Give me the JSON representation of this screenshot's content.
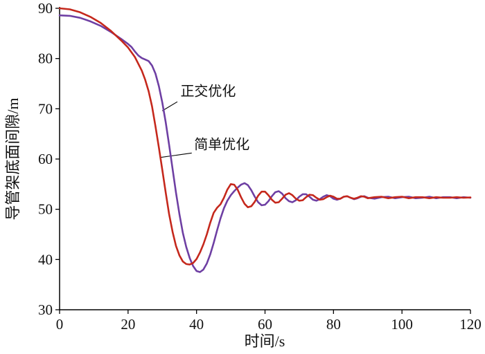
{
  "figure": {
    "background": "#ffffff",
    "axis_color": "#000000",
    "text_color": "#111111"
  },
  "chart_data": {
    "type": "line",
    "title": "",
    "xlabel": "时间/s",
    "ylabel": "导管架底面间隙/m",
    "xlim": [
      0,
      120
    ],
    "ylim": [
      30,
      90
    ],
    "x_ticks": [
      0,
      20,
      40,
      60,
      80,
      100,
      120
    ],
    "y_ticks": [
      30,
      40,
      50,
      60,
      70,
      80,
      90
    ],
    "grid": false,
    "legend_position": "inline-annotations",
    "series": [
      {
        "name": "正交优化",
        "key": "orthogonal-optimization",
        "color": "#6e3fa3",
        "points": [
          [
            0,
            88.6
          ],
          [
            3,
            88.5
          ],
          [
            6,
            88.1
          ],
          [
            9,
            87.4
          ],
          [
            12,
            86.5
          ],
          [
            15,
            85.3
          ],
          [
            18,
            83.9
          ],
          [
            20,
            82.9
          ],
          [
            21,
            82.3
          ],
          [
            22,
            81.4
          ],
          [
            23,
            80.6
          ],
          [
            24,
            80.1
          ],
          [
            25,
            79.8
          ],
          [
            26,
            79.5
          ],
          [
            27,
            78.6
          ],
          [
            28,
            77.0
          ],
          [
            29,
            74.5
          ],
          [
            30,
            71.2
          ],
          [
            31,
            67.3
          ],
          [
            32,
            62.8
          ],
          [
            33,
            58.0
          ],
          [
            34,
            53.3
          ],
          [
            35,
            49.0
          ],
          [
            36,
            45.3
          ],
          [
            37,
            42.5
          ],
          [
            38,
            40.3
          ],
          [
            39,
            38.7
          ],
          [
            40,
            37.7
          ],
          [
            41,
            37.5
          ],
          [
            42,
            38.0
          ],
          [
            43,
            39.2
          ],
          [
            44,
            41.0
          ],
          [
            45,
            43.3
          ],
          [
            46,
            45.8
          ],
          [
            47,
            48.2
          ],
          [
            48,
            50.2
          ],
          [
            49,
            51.7
          ],
          [
            50,
            52.8
          ],
          [
            51,
            53.6
          ],
          [
            52,
            54.3
          ],
          [
            53,
            54.9
          ],
          [
            54,
            55.2
          ],
          [
            55,
            54.8
          ],
          [
            56,
            53.8
          ],
          [
            57,
            52.5
          ],
          [
            58,
            51.4
          ],
          [
            59,
            50.8
          ],
          [
            60,
            50.9
          ],
          [
            61,
            51.6
          ],
          [
            62,
            52.6
          ],
          [
            63,
            53.4
          ],
          [
            64,
            53.6
          ],
          [
            65,
            53.1
          ],
          [
            66,
            52.2
          ],
          [
            67,
            51.6
          ],
          [
            68,
            51.4
          ],
          [
            69,
            51.8
          ],
          [
            70,
            52.5
          ],
          [
            71,
            53.0
          ],
          [
            72,
            53.0
          ],
          [
            73,
            52.5
          ],
          [
            74,
            51.9
          ],
          [
            75,
            51.7
          ],
          [
            76,
            52.0
          ],
          [
            77,
            52.5
          ],
          [
            78,
            52.8
          ],
          [
            79,
            52.6
          ],
          [
            80,
            52.1
          ],
          [
            81,
            51.9
          ],
          [
            82,
            52.1
          ],
          [
            83,
            52.5
          ],
          [
            84,
            52.6
          ],
          [
            85,
            52.3
          ],
          [
            86,
            52.0
          ],
          [
            87,
            52.2
          ],
          [
            88,
            52.5
          ],
          [
            89,
            52.6
          ],
          [
            90,
            52.3
          ],
          [
            92,
            52.1
          ],
          [
            94,
            52.4
          ],
          [
            96,
            52.5
          ],
          [
            98,
            52.2
          ],
          [
            100,
            52.4
          ],
          [
            102,
            52.5
          ],
          [
            104,
            52.2
          ],
          [
            106,
            52.3
          ],
          [
            108,
            52.5
          ],
          [
            110,
            52.2
          ],
          [
            112,
            52.4
          ],
          [
            114,
            52.4
          ],
          [
            116,
            52.2
          ],
          [
            118,
            52.4
          ],
          [
            120,
            52.3
          ]
        ]
      },
      {
        "name": "简单优化",
        "key": "simple-optimization",
        "color": "#c5281c",
        "points": [
          [
            0,
            90.0
          ],
          [
            3,
            89.8
          ],
          [
            6,
            89.2
          ],
          [
            9,
            88.3
          ],
          [
            12,
            87.1
          ],
          [
            15,
            85.5
          ],
          [
            18,
            83.6
          ],
          [
            20,
            82.2
          ],
          [
            22,
            80.3
          ],
          [
            24,
            77.6
          ],
          [
            25,
            75.8
          ],
          [
            26,
            73.5
          ],
          [
            27,
            70.5
          ],
          [
            28,
            66.5
          ],
          [
            29,
            62.3
          ],
          [
            30,
            57.8
          ],
          [
            31,
            53.3
          ],
          [
            32,
            49.0
          ],
          [
            33,
            45.5
          ],
          [
            34,
            42.7
          ],
          [
            35,
            40.8
          ],
          [
            36,
            39.6
          ],
          [
            37,
            39.1
          ],
          [
            38,
            39.0
          ],
          [
            39,
            39.3
          ],
          [
            40,
            40.1
          ],
          [
            41,
            41.4
          ],
          [
            42,
            43.0
          ],
          [
            43,
            45.0
          ],
          [
            44,
            47.3
          ],
          [
            45,
            49.3
          ],
          [
            46,
            50.3
          ],
          [
            47,
            51.0
          ],
          [
            48,
            52.3
          ],
          [
            49,
            53.9
          ],
          [
            50,
            55.0
          ],
          [
            51,
            54.9
          ],
          [
            52,
            53.9
          ],
          [
            53,
            52.4
          ],
          [
            54,
            51.1
          ],
          [
            55,
            50.4
          ],
          [
            56,
            50.6
          ],
          [
            57,
            51.5
          ],
          [
            58,
            52.7
          ],
          [
            59,
            53.5
          ],
          [
            60,
            53.5
          ],
          [
            61,
            52.8
          ],
          [
            62,
            51.9
          ],
          [
            63,
            51.3
          ],
          [
            64,
            51.4
          ],
          [
            65,
            52.1
          ],
          [
            66,
            52.9
          ],
          [
            67,
            53.2
          ],
          [
            68,
            52.8
          ],
          [
            69,
            52.1
          ],
          [
            70,
            51.7
          ],
          [
            71,
            51.8
          ],
          [
            72,
            52.4
          ],
          [
            73,
            52.9
          ],
          [
            74,
            52.8
          ],
          [
            75,
            52.3
          ],
          [
            76,
            51.9
          ],
          [
            77,
            52.0
          ],
          [
            78,
            52.4
          ],
          [
            79,
            52.7
          ],
          [
            80,
            52.5
          ],
          [
            81,
            52.1
          ],
          [
            82,
            52.1
          ],
          [
            83,
            52.5
          ],
          [
            84,
            52.6
          ],
          [
            85,
            52.3
          ],
          [
            86,
            52.1
          ],
          [
            87,
            52.3
          ],
          [
            88,
            52.6
          ],
          [
            89,
            52.5
          ],
          [
            90,
            52.2
          ],
          [
            92,
            52.4
          ],
          [
            94,
            52.5
          ],
          [
            96,
            52.2
          ],
          [
            98,
            52.4
          ],
          [
            100,
            52.5
          ],
          [
            102,
            52.2
          ],
          [
            104,
            52.4
          ],
          [
            106,
            52.4
          ],
          [
            108,
            52.2
          ],
          [
            110,
            52.4
          ],
          [
            112,
            52.3
          ],
          [
            114,
            52.3
          ],
          [
            116,
            52.4
          ],
          [
            118,
            52.3
          ],
          [
            120,
            52.35
          ]
        ]
      }
    ],
    "annotations": [
      {
        "label": "正交优化",
        "series": "orthogonal-optimization",
        "text_pos": [
          35.3,
          72.6
        ],
        "line": [
          [
            34.4,
            71.4
          ],
          [
            30.0,
            69.6
          ]
        ]
      },
      {
        "label": "简单优化",
        "series": "simple-optimization",
        "text_pos": [
          39.3,
          62.0
        ],
        "line": [
          [
            38.6,
            61.2
          ],
          [
            29.3,
            60.3
          ]
        ]
      }
    ]
  }
}
